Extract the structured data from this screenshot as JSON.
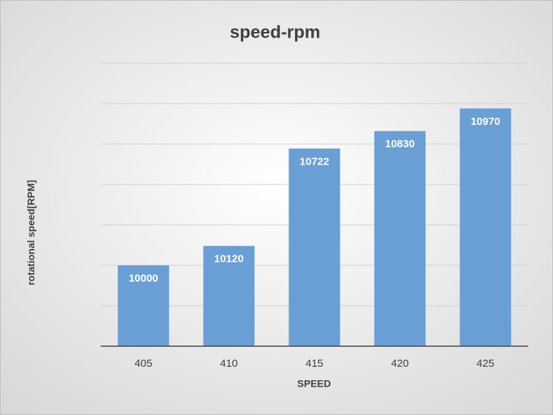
{
  "chart_data": {
    "type": "bar",
    "title": "speed-rpm",
    "x_label": "SPEED",
    "y_label": "rotational speed[RPM]",
    "categories": [
      "405",
      "410",
      "415",
      "420",
      "425"
    ],
    "values": [
      10000,
      10120,
      10722,
      10830,
      10970
    ],
    "color": "#6a9fd6",
    "ylim": [
      9500,
      11250
    ],
    "yticks": [
      9500,
      9750,
      10000,
      10250,
      10500,
      10750,
      11000,
      11250
    ],
    "grid": true,
    "y_tick_labels": false,
    "data_labels": true
  }
}
